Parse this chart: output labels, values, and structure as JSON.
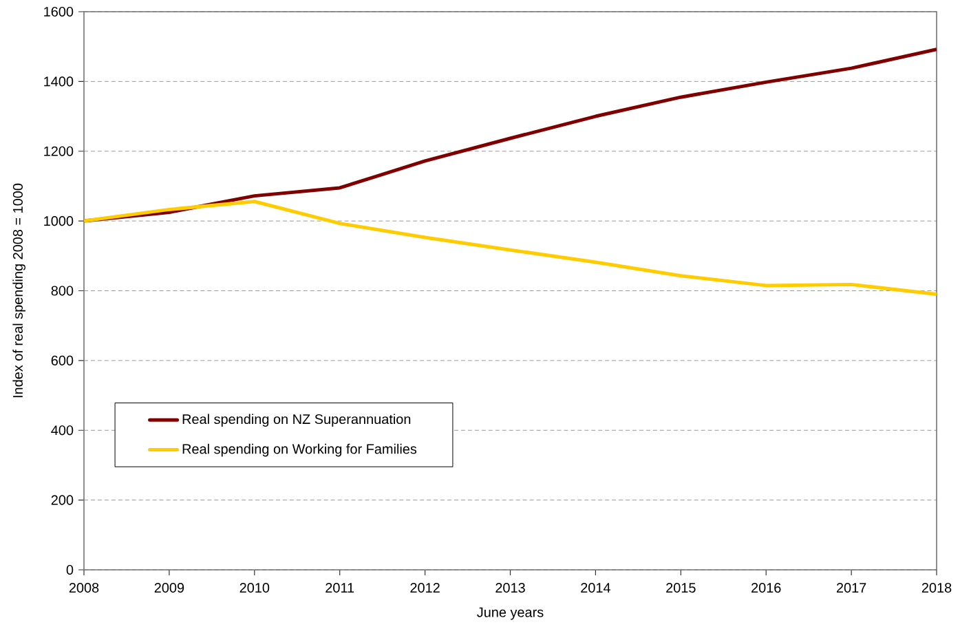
{
  "chart_data": {
    "type": "line",
    "xlabel": "June years",
    "ylabel": "Index of real spending 2008 = 1000",
    "x": [
      2008,
      2009,
      2010,
      2011,
      2012,
      2013,
      2014,
      2015,
      2016,
      2017,
      2018
    ],
    "series": [
      {
        "name": "Real spending on NZ Superannuation",
        "color": "#800000",
        "values": [
          1000,
          1025,
          1072,
          1095,
          1172,
          1237,
          1300,
          1355,
          1398,
          1438,
          1492
        ]
      },
      {
        "name": "Real spending on Working for Families",
        "color": "#ffcc00",
        "values": [
          1000,
          1033,
          1056,
          993,
          953,
          917,
          882,
          843,
          815,
          818,
          790
        ]
      }
    ],
    "xlim": [
      2008,
      2018
    ],
    "ylim": [
      0,
      1600
    ],
    "xticks": [
      2008,
      2009,
      2010,
      2011,
      2012,
      2013,
      2014,
      2015,
      2016,
      2017,
      2018
    ],
    "yticks": [
      0,
      200,
      400,
      600,
      800,
      1000,
      1200,
      1400,
      1600
    ],
    "grid": "y",
    "legend": "bottom left"
  }
}
